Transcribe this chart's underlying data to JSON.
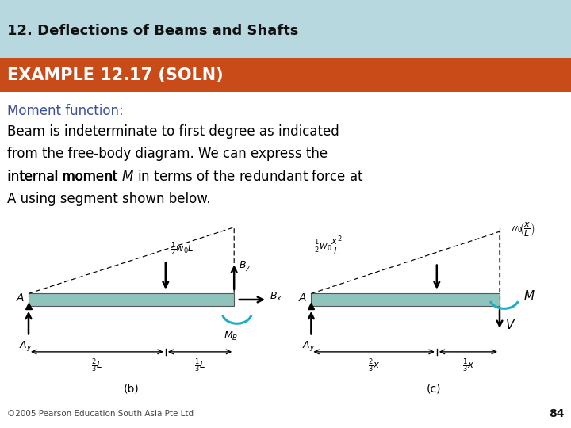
{
  "title_top": "12. Deflections of Beams and Shafts",
  "title_bar": "EXAMPLE 12.17 (SOLN)",
  "subtitle": "Moment function:",
  "body_line1": "Beam is indeterminate to first degree as indicated",
  "body_line2": "from the free-body diagram. We can express the",
  "body_line3": "internal moment ",
  "body_line3b": " in terms of the redundant force at",
  "body_line4": "A using segment shown below.",
  "footer": "©2005 Pearson Education South Asia Pte Ltd",
  "page_num": "84",
  "header_bg": "#b8d8df",
  "bar_bg": "#c84b18",
  "bar_text_color": "#ffffff",
  "subtitle_color": "#3b4fa0",
  "body_color": "#000000",
  "beam_fill": "#8fc4bc",
  "beam_edge": "#555555",
  "arrow_color": "#000000",
  "cyan_color": "#1eadc8",
  "title_fontsize": 13,
  "bar_fontsize": 15,
  "subtitle_fontsize": 12,
  "body_fontsize": 12
}
